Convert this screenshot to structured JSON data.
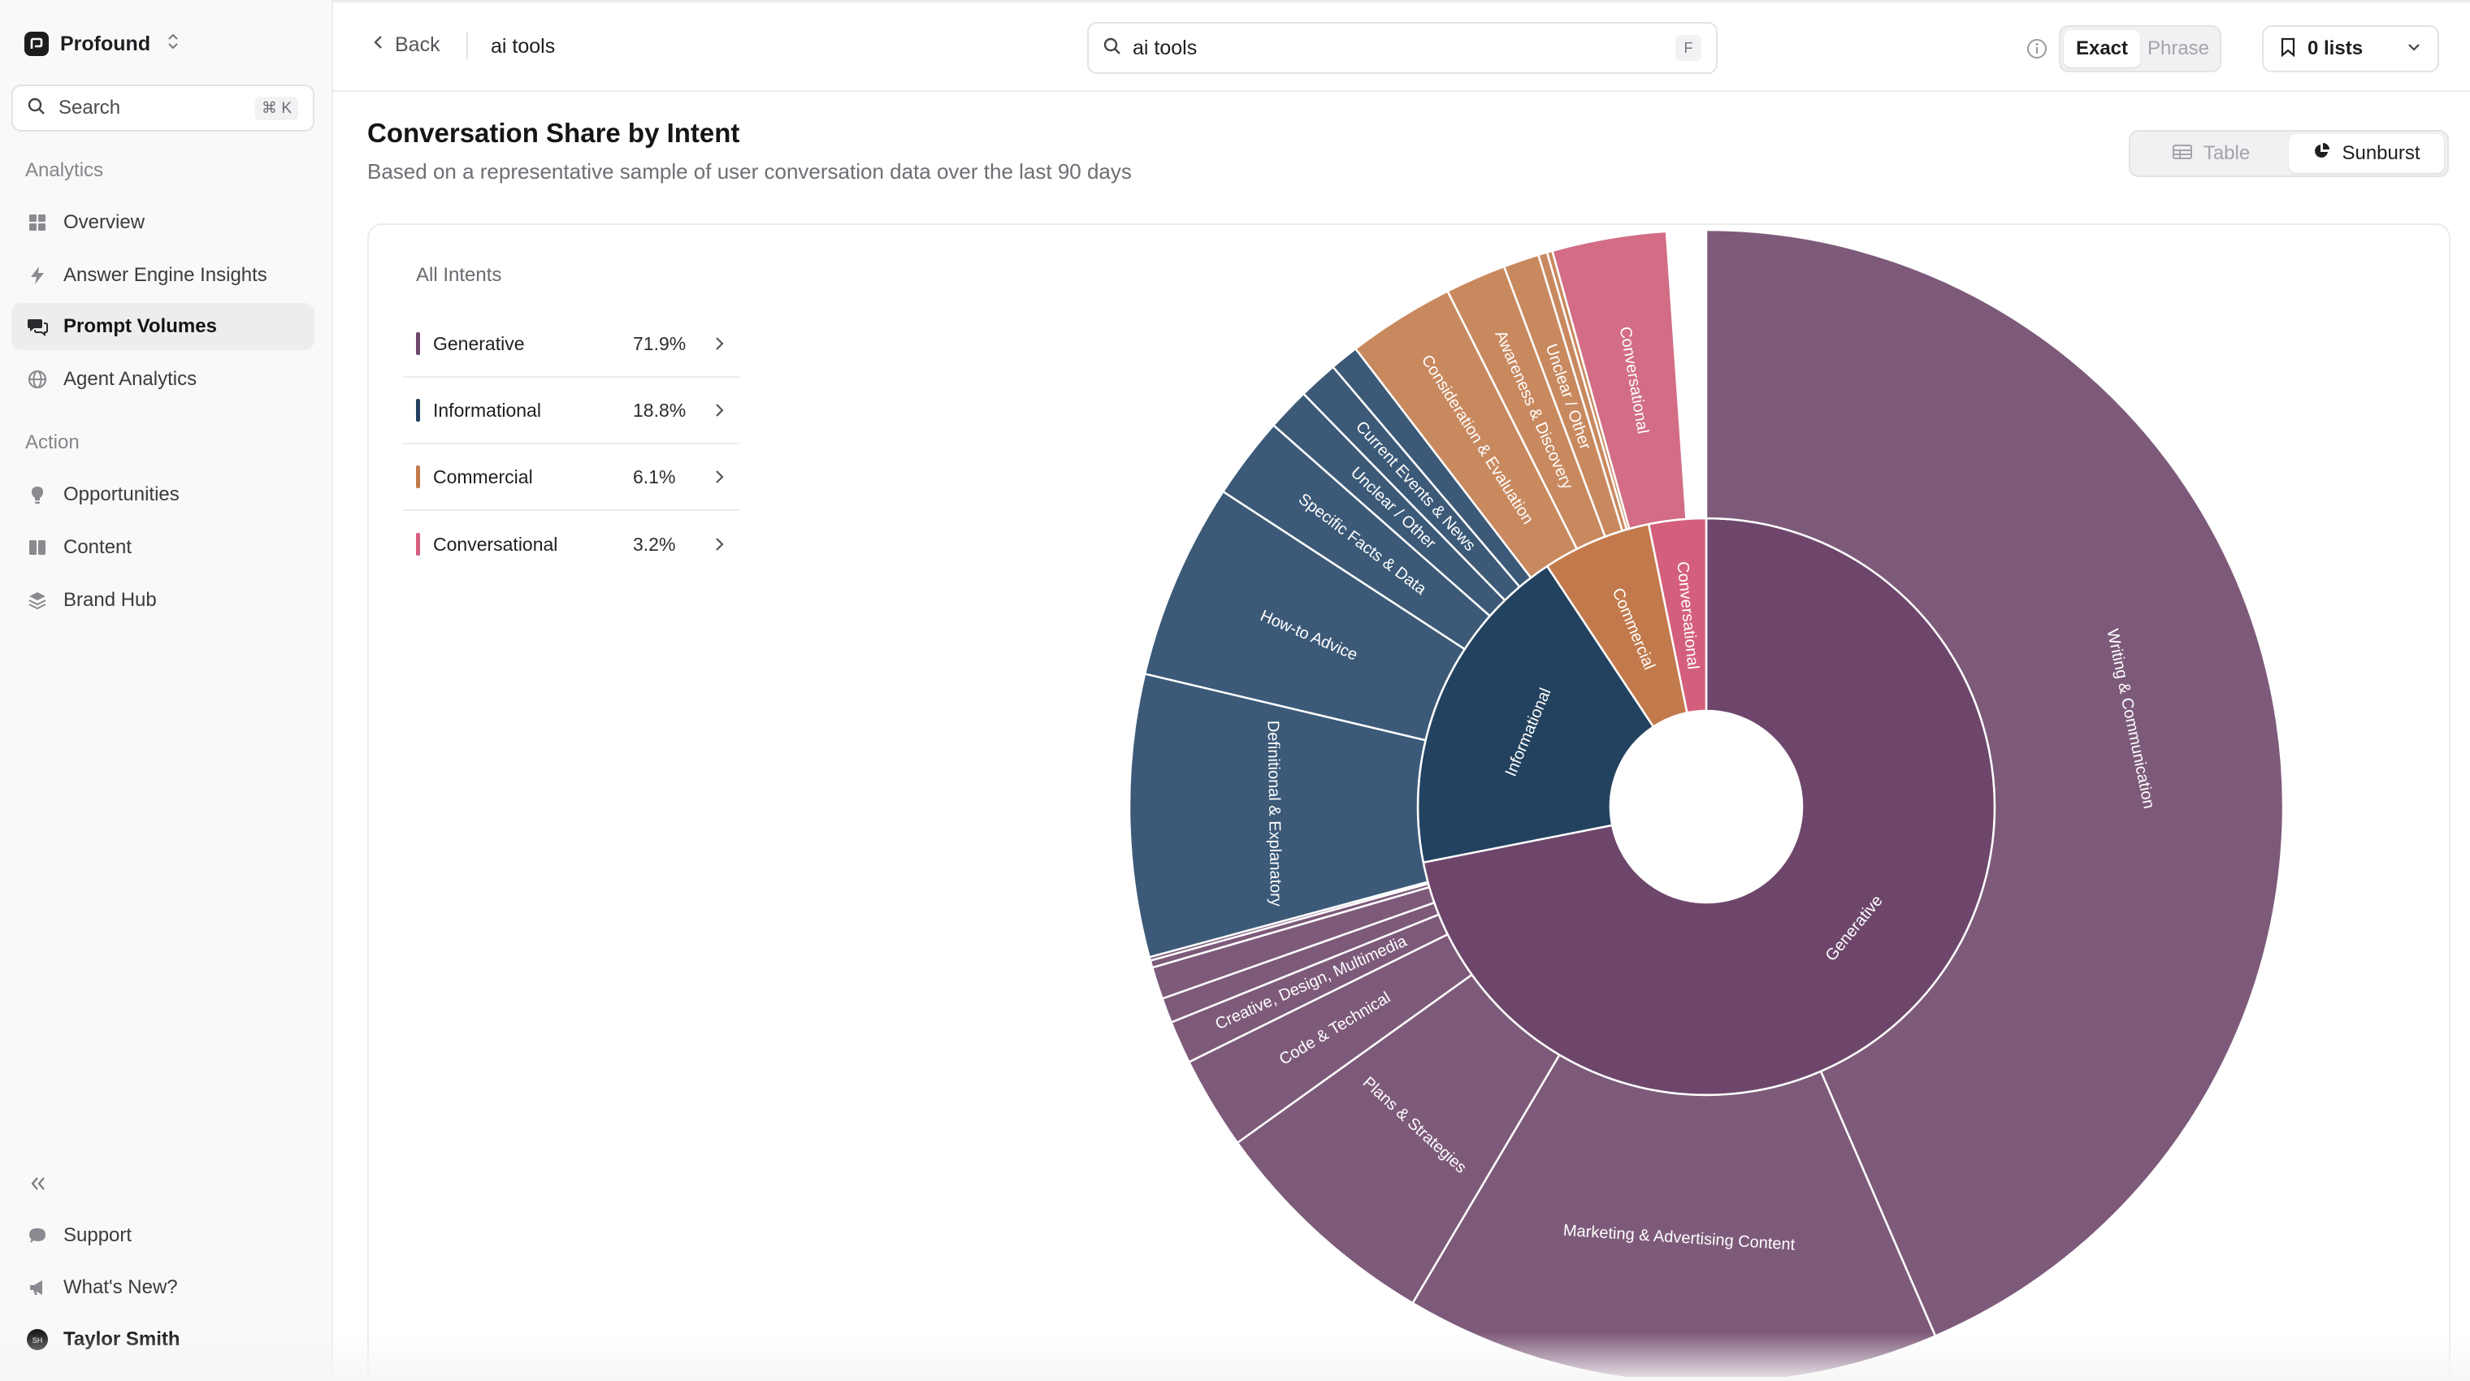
{
  "sidebar": {
    "org_name": "Profound",
    "search_placeholder": "Search",
    "search_shortcut": "⌘ K",
    "analytics_label": "Analytics",
    "analytics_items": [
      {
        "label": "Overview",
        "icon": "grid-icon"
      },
      {
        "label": "Answer Engine Insights",
        "icon": "bolt-icon"
      },
      {
        "label": "Prompt Volumes",
        "icon": "chat-icon",
        "active": true
      },
      {
        "label": "Agent Analytics",
        "icon": "globe-icon"
      }
    ],
    "action_label": "Action",
    "action_items": [
      {
        "label": "Opportunities",
        "icon": "lightbulb-icon"
      },
      {
        "label": "Content",
        "icon": "book-icon"
      },
      {
        "label": "Brand Hub",
        "icon": "layers-icon"
      }
    ],
    "footer_items": [
      {
        "label": "Support",
        "icon": "chat-bubble-icon"
      },
      {
        "label": "What's New?",
        "icon": "megaphone-icon"
      }
    ],
    "user_name": "Taylor Smith",
    "user_initials": "SH"
  },
  "topbar": {
    "back_label": "Back",
    "breadcrumb": "ai tools",
    "query_value": "ai tools",
    "query_shortcut": "F",
    "match_options": [
      "Exact",
      "Phrase"
    ],
    "match_selected": "Exact",
    "lists_label": "0 lists"
  },
  "main": {
    "title": "Conversation Share by Intent",
    "subtitle": "Based on a representative sample of user conversation data over the last 90 days",
    "view_options": [
      "Table",
      "Sunburst"
    ],
    "view_selected": "Sunburst",
    "legend_title": "All Intents",
    "legend": [
      {
        "name": "Generative",
        "pct": "71.9%",
        "color": "#6e466b"
      },
      {
        "name": "Informational",
        "pct": "18.8%",
        "color": "#23425f"
      },
      {
        "name": "Commercial",
        "pct": "6.1%",
        "color": "#c27a4c"
      },
      {
        "name": "Conversational",
        "pct": "3.2%",
        "color": "#d45f7c"
      }
    ]
  },
  "chart_data": {
    "type": "sunburst",
    "start_angle_deg": 0,
    "direction": "clockwise",
    "inner": [
      {
        "name": "Generative",
        "value": 71.9,
        "color": "#6e466b"
      },
      {
        "name": "Informational",
        "value": 18.8,
        "color": "#23425f"
      },
      {
        "name": "Commercial",
        "value": 6.1,
        "color": "#c27a4c"
      },
      {
        "name": "Conversational",
        "value": 3.2,
        "color": "#d45f7c"
      }
    ],
    "outer": [
      {
        "parent": "Generative",
        "name": "Writing & Communication",
        "value": 43.5,
        "color": "#7d5a7a",
        "label": "Writing & Communication"
      },
      {
        "parent": "Generative",
        "name": "Marketing & Advertising Content",
        "value": 15.0,
        "color": "#7d5a7a",
        "label": "Marketing & Advertising Content"
      },
      {
        "parent": "Generative",
        "name": "Plans & Strategies",
        "value": 6.6,
        "color": "#7d5a7a",
        "label": "Plans & Strategies"
      },
      {
        "parent": "Generative",
        "name": "Code & Technical",
        "value": 2.6,
        "color": "#7d5a7a",
        "label": "Code & Technical"
      },
      {
        "parent": "Generative",
        "name": "Creative, Design, Multimedia",
        "value": 1.2,
        "color": "#7d5a7a",
        "label": "Creative, Design, Multimedia"
      },
      {
        "parent": "Generative",
        "name": "Generative other 1",
        "value": 0.7,
        "color": "#7d5a7a",
        "label": ""
      },
      {
        "parent": "Generative",
        "name": "Generative other 2",
        "value": 0.9,
        "color": "#7d5a7a",
        "label": ""
      },
      {
        "parent": "Generative",
        "name": "Generative other 3",
        "value": 0.2,
        "color": "#7d5a7a",
        "label": ""
      },
      {
        "parent": "Generative",
        "name": "Generative other 4",
        "value": 0.1,
        "color": "#7d5a7a",
        "label": ""
      },
      {
        "parent": "Informational",
        "name": "Definitional & Explanatory",
        "value": 7.9,
        "color": "#3c5a78",
        "label": "Definitional & Explanatory"
      },
      {
        "parent": "Informational",
        "name": "How-to Advice",
        "value": 5.5,
        "color": "#3c5a78",
        "label": "How-to Advice"
      },
      {
        "parent": "Informational",
        "name": "Specific Facts & Data",
        "value": 2.3,
        "color": "#3c5a78",
        "label": "Specific Facts & Data"
      },
      {
        "parent": "Informational",
        "name": "Unclear / Other",
        "value": 1.2,
        "color": "#3c5a78",
        "label": "Unclear / Other"
      },
      {
        "parent": "Informational",
        "name": "Current Events & News",
        "value": 1.1,
        "color": "#3c5a78",
        "label": "Current Events & News"
      },
      {
        "parent": "Informational",
        "name": "Informational other",
        "value": 0.8,
        "color": "#3c5a78",
        "label": ""
      },
      {
        "parent": "Commercial",
        "name": "Consideration & Evaluation",
        "value": 3.0,
        "color": "#c9895f",
        "label": "Consideration & Evaluation"
      },
      {
        "parent": "Commercial",
        "name": "Awareness & Discovery",
        "value": 1.7,
        "color": "#c9895f",
        "label": "Awareness & Discovery"
      },
      {
        "parent": "Commercial",
        "name": "Unclear / Other",
        "value": 1.0,
        "color": "#c9895f",
        "label": "Unclear / Other"
      },
      {
        "parent": "Commercial",
        "name": "Commercial other 1",
        "value": 0.25,
        "color": "#c9895f",
        "label": ""
      },
      {
        "parent": "Commercial",
        "name": "Commercial other 2",
        "value": 0.15,
        "color": "#c9895f",
        "label": ""
      },
      {
        "parent": "Conversational",
        "name": "Conversational",
        "value": 3.2,
        "color": "#d26d85",
        "label": "Conversational"
      }
    ]
  }
}
